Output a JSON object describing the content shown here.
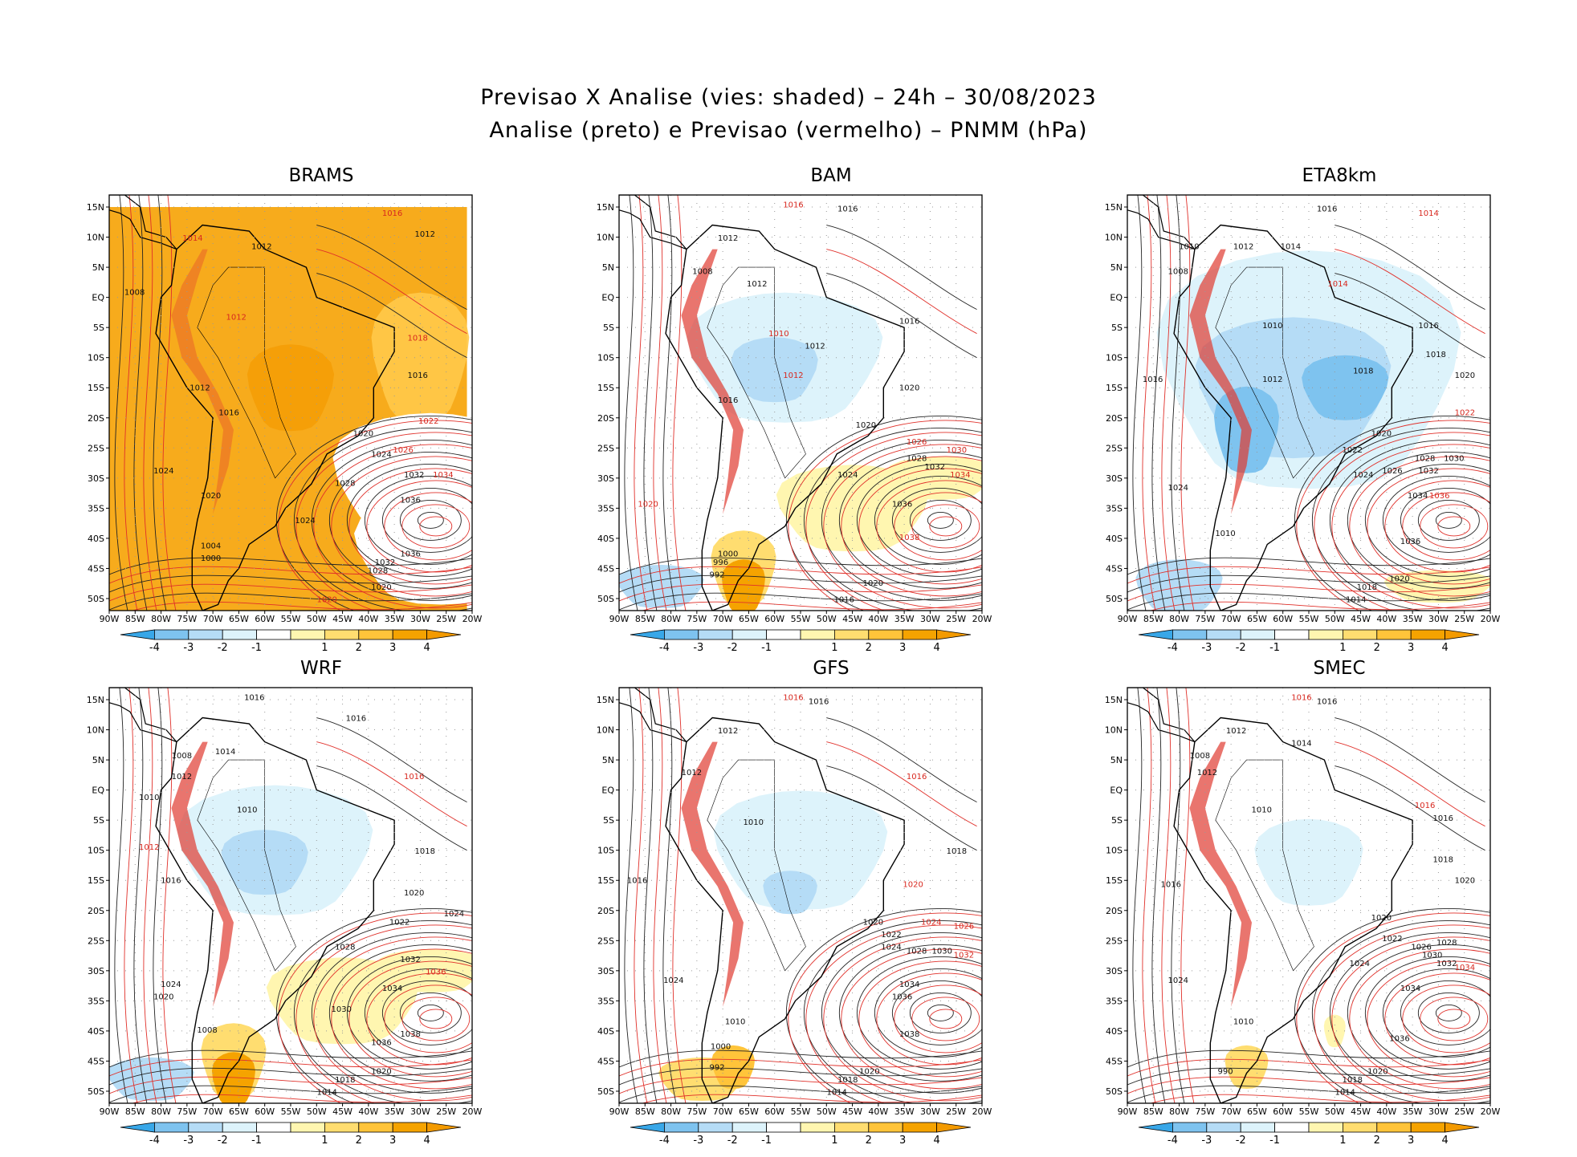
{
  "title_line1": "Previsao X Analise (vies: shaded) – 24h – 30/08/2023",
  "title_line2": "Analise (preto) e Previsao (vermelho) – PNMM (hPa)",
  "lat_labels": [
    "15N",
    "10N",
    "5N",
    "EQ",
    "5S",
    "10S",
    "15S",
    "20S",
    "25S",
    "30S",
    "35S",
    "40S",
    "45S",
    "50S"
  ],
  "lon_labels": [
    "90W",
    "85W",
    "80W",
    "75W",
    "70W",
    "65W",
    "60W",
    "55W",
    "50W",
    "45W",
    "40W",
    "35W",
    "30W",
    "25W",
    "20W"
  ],
  "colorbar": {
    "ticks": [
      "-4",
      "-3",
      "-2",
      "-1",
      "1",
      "2",
      "3",
      "4"
    ],
    "colors": [
      "#38a7e8",
      "#7ec3ef",
      "#b5dcf6",
      "#ddf3fb",
      "#ffffff",
      "#fff6b0",
      "#ffdd70",
      "#ffc43a",
      "#f5a300",
      "#f39a00"
    ]
  },
  "panels": [
    {
      "name": "BRAMS",
      "bias": "orange",
      "labels": [
        {
          "t": "1016",
          "c": "red",
          "lx": 0.78,
          "ly": 0.05
        },
        {
          "t": "1012",
          "c": "blk",
          "lx": 0.42,
          "ly": 0.13
        },
        {
          "t": "1012",
          "c": "blk",
          "lx": 0.87,
          "ly": 0.1
        },
        {
          "t": "1008",
          "c": "blk",
          "lx": 0.07,
          "ly": 0.24
        },
        {
          "t": "1014",
          "c": "red",
          "lx": 0.23,
          "ly": 0.11
        },
        {
          "t": "1012",
          "c": "red",
          "lx": 0.35,
          "ly": 0.3
        },
        {
          "t": "1018",
          "c": "red",
          "lx": 0.85,
          "ly": 0.35
        },
        {
          "t": "1016",
          "c": "blk",
          "lx": 0.85,
          "ly": 0.44
        },
        {
          "t": "1012",
          "c": "blk",
          "lx": 0.25,
          "ly": 0.47
        },
        {
          "t": "1016",
          "c": "blk",
          "lx": 0.33,
          "ly": 0.53
        },
        {
          "t": "1020",
          "c": "blk",
          "lx": 0.7,
          "ly": 0.58
        },
        {
          "t": "1022",
          "c": "red",
          "lx": 0.88,
          "ly": 0.55
        },
        {
          "t": "1024",
          "c": "blk",
          "lx": 0.75,
          "ly": 0.63
        },
        {
          "t": "1026",
          "c": "red",
          "lx": 0.81,
          "ly": 0.62
        },
        {
          "t": "1032",
          "c": "blk",
          "lx": 0.84,
          "ly": 0.68
        },
        {
          "t": "1034",
          "c": "red",
          "lx": 0.92,
          "ly": 0.68
        },
        {
          "t": "1028",
          "c": "blk",
          "lx": 0.65,
          "ly": 0.7
        },
        {
          "t": "1036",
          "c": "blk",
          "lx": 0.83,
          "ly": 0.74
        },
        {
          "t": "1024",
          "c": "blk",
          "lx": 0.54,
          "ly": 0.79
        },
        {
          "t": "1036",
          "c": "blk",
          "lx": 0.83,
          "ly": 0.87
        },
        {
          "t": "1032",
          "c": "blk",
          "lx": 0.76,
          "ly": 0.89
        },
        {
          "t": "1028",
          "c": "blk",
          "lx": 0.74,
          "ly": 0.91
        },
        {
          "t": "1020",
          "c": "blk",
          "lx": 0.75,
          "ly": 0.95
        },
        {
          "t": "1020",
          "c": "red",
          "lx": 0.6,
          "ly": 0.98
        },
        {
          "t": "1024",
          "c": "blk",
          "lx": 0.15,
          "ly": 0.67
        },
        {
          "t": "1020",
          "c": "blk",
          "lx": 0.28,
          "ly": 0.73
        },
        {
          "t": "1004",
          "c": "blk",
          "lx": 0.28,
          "ly": 0.85
        },
        {
          "t": "1000",
          "c": "blk",
          "lx": 0.28,
          "ly": 0.88
        }
      ]
    },
    {
      "name": "BAM",
      "bias": "mixed",
      "labels": [
        {
          "t": "1016",
          "c": "blk",
          "lx": 0.63,
          "ly": 0.04
        },
        {
          "t": "1016",
          "c": "red",
          "lx": 0.48,
          "ly": 0.03
        },
        {
          "t": "1012",
          "c": "blk",
          "lx": 0.3,
          "ly": 0.11
        },
        {
          "t": "1008",
          "c": "blk",
          "lx": 0.23,
          "ly": 0.19
        },
        {
          "t": "1012",
          "c": "blk",
          "lx": 0.38,
          "ly": 0.22
        },
        {
          "t": "1016",
          "c": "blk",
          "lx": 0.8,
          "ly": 0.31
        },
        {
          "t": "1012",
          "c": "blk",
          "lx": 0.54,
          "ly": 0.37
        },
        {
          "t": "1010",
          "c": "red",
          "lx": 0.44,
          "ly": 0.34
        },
        {
          "t": "1012",
          "c": "red",
          "lx": 0.48,
          "ly": 0.44
        },
        {
          "t": "1020",
          "c": "blk",
          "lx": 0.8,
          "ly": 0.47
        },
        {
          "t": "1016",
          "c": "blk",
          "lx": 0.3,
          "ly": 0.5
        },
        {
          "t": "1020",
          "c": "blk",
          "lx": 0.68,
          "ly": 0.56
        },
        {
          "t": "1026",
          "c": "red",
          "lx": 0.82,
          "ly": 0.6
        },
        {
          "t": "1030",
          "c": "red",
          "lx": 0.93,
          "ly": 0.62
        },
        {
          "t": "1028",
          "c": "blk",
          "lx": 0.82,
          "ly": 0.64
        },
        {
          "t": "1032",
          "c": "blk",
          "lx": 0.87,
          "ly": 0.66
        },
        {
          "t": "1034",
          "c": "red",
          "lx": 0.94,
          "ly": 0.68
        },
        {
          "t": "1024",
          "c": "blk",
          "lx": 0.63,
          "ly": 0.68
        },
        {
          "t": "1036",
          "c": "blk",
          "lx": 0.78,
          "ly": 0.75
        },
        {
          "t": "1038",
          "c": "red",
          "lx": 0.8,
          "ly": 0.83
        },
        {
          "t": "1020",
          "c": "red",
          "lx": 0.08,
          "ly": 0.75
        },
        {
          "t": "1000",
          "c": "blk",
          "lx": 0.3,
          "ly": 0.87
        },
        {
          "t": "996",
          "c": "blk",
          "lx": 0.28,
          "ly": 0.89
        },
        {
          "t": "992",
          "c": "blk",
          "lx": 0.27,
          "ly": 0.92
        },
        {
          "t": "1020",
          "c": "blk",
          "lx": 0.7,
          "ly": 0.94
        },
        {
          "t": "1016",
          "c": "blk",
          "lx": 0.62,
          "ly": 0.98
        }
      ]
    },
    {
      "name": "ETA8km",
      "bias": "blue",
      "labels": [
        {
          "t": "1016",
          "c": "blk",
          "lx": 0.55,
          "ly": 0.04
        },
        {
          "t": "1014",
          "c": "red",
          "lx": 0.83,
          "ly": 0.05
        },
        {
          "t": "1012",
          "c": "blk",
          "lx": 0.32,
          "ly": 0.13
        },
        {
          "t": "1014",
          "c": "blk",
          "lx": 0.45,
          "ly": 0.13
        },
        {
          "t": "1010",
          "c": "blk",
          "lx": 0.17,
          "ly": 0.13
        },
        {
          "t": "1008",
          "c": "blk",
          "lx": 0.14,
          "ly": 0.19
        },
        {
          "t": "1014",
          "c": "red",
          "lx": 0.58,
          "ly": 0.22
        },
        {
          "t": "1010",
          "c": "blk",
          "lx": 0.4,
          "ly": 0.32
        },
        {
          "t": "1016",
          "c": "blk",
          "lx": 0.83,
          "ly": 0.32
        },
        {
          "t": "1018",
          "c": "blk",
          "lx": 0.85,
          "ly": 0.39
        },
        {
          "t": "1012",
          "c": "blk",
          "lx": 0.4,
          "ly": 0.45
        },
        {
          "t": "1018",
          "c": "blk",
          "lx": 0.65,
          "ly": 0.43
        },
        {
          "t": "1016",
          "c": "blk",
          "lx": 0.07,
          "ly": 0.45
        },
        {
          "t": "1020",
          "c": "blk",
          "lx": 0.93,
          "ly": 0.44
        },
        {
          "t": "1022",
          "c": "red",
          "lx": 0.93,
          "ly": 0.53
        },
        {
          "t": "1020",
          "c": "blk",
          "lx": 0.7,
          "ly": 0.58
        },
        {
          "t": "1022",
          "c": "blk",
          "lx": 0.62,
          "ly": 0.62
        },
        {
          "t": "1028",
          "c": "blk",
          "lx": 0.82,
          "ly": 0.64
        },
        {
          "t": "1030",
          "c": "blk",
          "lx": 0.9,
          "ly": 0.64
        },
        {
          "t": "1032",
          "c": "blk",
          "lx": 0.83,
          "ly": 0.67
        },
        {
          "t": "1026",
          "c": "blk",
          "lx": 0.73,
          "ly": 0.67
        },
        {
          "t": "1024",
          "c": "blk",
          "lx": 0.65,
          "ly": 0.68
        },
        {
          "t": "1034",
          "c": "blk",
          "lx": 0.8,
          "ly": 0.73
        },
        {
          "t": "1036",
          "c": "red",
          "lx": 0.86,
          "ly": 0.73
        },
        {
          "t": "1036",
          "c": "blk",
          "lx": 0.78,
          "ly": 0.84
        },
        {
          "t": "1020",
          "c": "blk",
          "lx": 0.75,
          "ly": 0.93
        },
        {
          "t": "1018",
          "c": "blk",
          "lx": 0.66,
          "ly": 0.95
        },
        {
          "t": "1014",
          "c": "blk",
          "lx": 0.63,
          "ly": 0.98
        },
        {
          "t": "1024",
          "c": "blk",
          "lx": 0.14,
          "ly": 0.71
        },
        {
          "t": "1010",
          "c": "blk",
          "lx": 0.27,
          "ly": 0.82
        }
      ]
    },
    {
      "name": "WRF",
      "bias": "mixed",
      "labels": [
        {
          "t": "1016",
          "c": "blk",
          "lx": 0.4,
          "ly": 0.03
        },
        {
          "t": "1016",
          "c": "blk",
          "lx": 0.68,
          "ly": 0.08
        },
        {
          "t": "1014",
          "c": "blk",
          "lx": 0.32,
          "ly": 0.16
        },
        {
          "t": "1008",
          "c": "blk",
          "lx": 0.2,
          "ly": 0.17
        },
        {
          "t": "1012",
          "c": "blk",
          "lx": 0.2,
          "ly": 0.22
        },
        {
          "t": "1010",
          "c": "blk",
          "lx": 0.11,
          "ly": 0.27
        },
        {
          "t": "1016",
          "c": "red",
          "lx": 0.84,
          "ly": 0.22
        },
        {
          "t": "1010",
          "c": "blk",
          "lx": 0.38,
          "ly": 0.3
        },
        {
          "t": "1018",
          "c": "blk",
          "lx": 0.87,
          "ly": 0.4
        },
        {
          "t": "1012",
          "c": "red",
          "lx": 0.11,
          "ly": 0.39
        },
        {
          "t": "1016",
          "c": "blk",
          "lx": 0.17,
          "ly": 0.47
        },
        {
          "t": "1020",
          "c": "blk",
          "lx": 0.84,
          "ly": 0.5
        },
        {
          "t": "1024",
          "c": "blk",
          "lx": 0.95,
          "ly": 0.55
        },
        {
          "t": "1022",
          "c": "blk",
          "lx": 0.8,
          "ly": 0.57
        },
        {
          "t": "1028",
          "c": "blk",
          "lx": 0.65,
          "ly": 0.63
        },
        {
          "t": "1032",
          "c": "blk",
          "lx": 0.83,
          "ly": 0.66
        },
        {
          "t": "1034",
          "c": "blk",
          "lx": 0.78,
          "ly": 0.73
        },
        {
          "t": "1036",
          "c": "red",
          "lx": 0.9,
          "ly": 0.69
        },
        {
          "t": "1030",
          "c": "blk",
          "lx": 0.64,
          "ly": 0.78
        },
        {
          "t": "1038",
          "c": "blk",
          "lx": 0.83,
          "ly": 0.84
        },
        {
          "t": "1036",
          "c": "blk",
          "lx": 0.75,
          "ly": 0.86
        },
        {
          "t": "1020",
          "c": "blk",
          "lx": 0.75,
          "ly": 0.93
        },
        {
          "t": "1018",
          "c": "blk",
          "lx": 0.65,
          "ly": 0.95
        },
        {
          "t": "1014",
          "c": "blk",
          "lx": 0.6,
          "ly": 0.98
        },
        {
          "t": "1024",
          "c": "blk",
          "lx": 0.17,
          "ly": 0.72
        },
        {
          "t": "1020",
          "c": "blk",
          "lx": 0.15,
          "ly": 0.75
        },
        {
          "t": "1008",
          "c": "blk",
          "lx": 0.27,
          "ly": 0.83
        }
      ]
    },
    {
      "name": "GFS",
      "bias": "lightblue",
      "labels": [
        {
          "t": "1016",
          "c": "blk",
          "lx": 0.55,
          "ly": 0.04
        },
        {
          "t": "1016",
          "c": "red",
          "lx": 0.48,
          "ly": 0.03
        },
        {
          "t": "1012",
          "c": "blk",
          "lx": 0.3,
          "ly": 0.11
        },
        {
          "t": "1012",
          "c": "blk",
          "lx": 0.2,
          "ly": 0.21
        },
        {
          "t": "1016",
          "c": "red",
          "lx": 0.82,
          "ly": 0.22
        },
        {
          "t": "1010",
          "c": "blk",
          "lx": 0.37,
          "ly": 0.33
        },
        {
          "t": "1018",
          "c": "blk",
          "lx": 0.93,
          "ly": 0.4
        },
        {
          "t": "1016",
          "c": "blk",
          "lx": 0.05,
          "ly": 0.47
        },
        {
          "t": "1020",
          "c": "red",
          "lx": 0.81,
          "ly": 0.48
        },
        {
          "t": "1020",
          "c": "blk",
          "lx": 0.7,
          "ly": 0.57
        },
        {
          "t": "1022",
          "c": "blk",
          "lx": 0.75,
          "ly": 0.6
        },
        {
          "t": "1024",
          "c": "red",
          "lx": 0.86,
          "ly": 0.57
        },
        {
          "t": "1026",
          "c": "red",
          "lx": 0.95,
          "ly": 0.58
        },
        {
          "t": "1028",
          "c": "blk",
          "lx": 0.82,
          "ly": 0.64
        },
        {
          "t": "1030",
          "c": "blk",
          "lx": 0.89,
          "ly": 0.64
        },
        {
          "t": "1032",
          "c": "red",
          "lx": 0.95,
          "ly": 0.65
        },
        {
          "t": "1024",
          "c": "blk",
          "lx": 0.75,
          "ly": 0.63
        },
        {
          "t": "1034",
          "c": "blk",
          "lx": 0.8,
          "ly": 0.72
        },
        {
          "t": "1036",
          "c": "blk",
          "lx": 0.78,
          "ly": 0.75
        },
        {
          "t": "1038",
          "c": "blk",
          "lx": 0.8,
          "ly": 0.84
        },
        {
          "t": "1020",
          "c": "blk",
          "lx": 0.69,
          "ly": 0.93
        },
        {
          "t": "1018",
          "c": "blk",
          "lx": 0.63,
          "ly": 0.95
        },
        {
          "t": "1014",
          "c": "blk",
          "lx": 0.6,
          "ly": 0.98
        },
        {
          "t": "1024",
          "c": "blk",
          "lx": 0.15,
          "ly": 0.71
        },
        {
          "t": "1010",
          "c": "blk",
          "lx": 0.32,
          "ly": 0.81
        },
        {
          "t": "1000",
          "c": "blk",
          "lx": 0.28,
          "ly": 0.87
        },
        {
          "t": "992",
          "c": "blk",
          "lx": 0.27,
          "ly": 0.92
        }
      ]
    },
    {
      "name": "SMEC",
      "bias": "light",
      "labels": [
        {
          "t": "1016",
          "c": "blk",
          "lx": 0.55,
          "ly": 0.04
        },
        {
          "t": "1016",
          "c": "red",
          "lx": 0.48,
          "ly": 0.03
        },
        {
          "t": "1012",
          "c": "blk",
          "lx": 0.3,
          "ly": 0.11
        },
        {
          "t": "1014",
          "c": "blk",
          "lx": 0.48,
          "ly": 0.14
        },
        {
          "t": "1008",
          "c": "blk",
          "lx": 0.2,
          "ly": 0.17
        },
        {
          "t": "1012",
          "c": "blk",
          "lx": 0.22,
          "ly": 0.21
        },
        {
          "t": "1016",
          "c": "red",
          "lx": 0.82,
          "ly": 0.29
        },
        {
          "t": "1016",
          "c": "blk",
          "lx": 0.87,
          "ly": 0.32
        },
        {
          "t": "1010",
          "c": "blk",
          "lx": 0.37,
          "ly": 0.3
        },
        {
          "t": "1018",
          "c": "blk",
          "lx": 0.87,
          "ly": 0.42
        },
        {
          "t": "1016",
          "c": "blk",
          "lx": 0.12,
          "ly": 0.48
        },
        {
          "t": "1020",
          "c": "blk",
          "lx": 0.93,
          "ly": 0.47
        },
        {
          "t": "1020",
          "c": "blk",
          "lx": 0.7,
          "ly": 0.56
        },
        {
          "t": "1022",
          "c": "blk",
          "lx": 0.73,
          "ly": 0.61
        },
        {
          "t": "1026",
          "c": "blk",
          "lx": 0.81,
          "ly": 0.63
        },
        {
          "t": "1028",
          "c": "blk",
          "lx": 0.88,
          "ly": 0.62
        },
        {
          "t": "1030",
          "c": "blk",
          "lx": 0.84,
          "ly": 0.65
        },
        {
          "t": "1032",
          "c": "blk",
          "lx": 0.88,
          "ly": 0.67
        },
        {
          "t": "1034",
          "c": "red",
          "lx": 0.93,
          "ly": 0.68
        },
        {
          "t": "1024",
          "c": "blk",
          "lx": 0.64,
          "ly": 0.67
        },
        {
          "t": "1034",
          "c": "blk",
          "lx": 0.78,
          "ly": 0.73
        },
        {
          "t": "1036",
          "c": "blk",
          "lx": 0.75,
          "ly": 0.85
        },
        {
          "t": "1020",
          "c": "blk",
          "lx": 0.69,
          "ly": 0.93
        },
        {
          "t": "1018",
          "c": "blk",
          "lx": 0.62,
          "ly": 0.95
        },
        {
          "t": "1014",
          "c": "blk",
          "lx": 0.6,
          "ly": 0.98
        },
        {
          "t": "1024",
          "c": "blk",
          "lx": 0.14,
          "ly": 0.71
        },
        {
          "t": "1010",
          "c": "blk",
          "lx": 0.32,
          "ly": 0.81
        },
        {
          "t": "990",
          "c": "blk",
          "lx": 0.27,
          "ly": 0.93
        }
      ]
    }
  ]
}
